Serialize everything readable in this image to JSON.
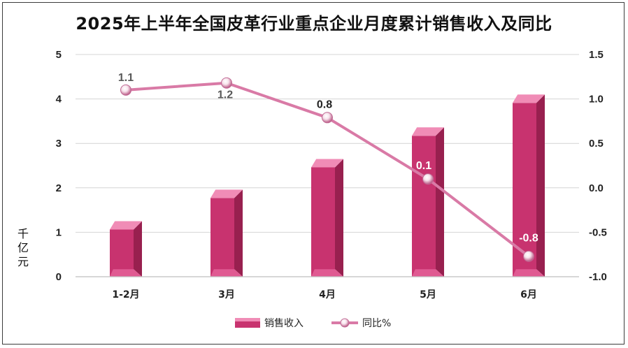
{
  "chart_data": {
    "type": "bar",
    "title": "2025年上半年全国皮革行业重点企业月度累计销售收入及同比",
    "categories": [
      "1-2月",
      "3月",
      "4月",
      "5月",
      "6月"
    ],
    "ylabel": "千亿元",
    "ylim": [
      0,
      5
    ],
    "yticks": [
      "0",
      "1",
      "2",
      "3",
      "4",
      "5"
    ],
    "y2lim": [
      -1.0,
      1.5
    ],
    "y2ticks": [
      "-1.0",
      "-0.5",
      "0.0",
      "0.5",
      "1.0",
      "1.5"
    ],
    "grid": true,
    "legend_position": "bottom",
    "series": [
      {
        "name": "销售收入",
        "type": "bar",
        "axis": "left",
        "values": [
          1.25,
          1.96,
          2.65,
          3.36,
          4.1
        ],
        "color": "#c8336f"
      },
      {
        "name": "同比%",
        "type": "line",
        "axis": "right",
        "values": [
          1.1,
          1.18,
          0.79,
          0.1,
          -0.77
        ],
        "labels": [
          "1.1",
          "1.2",
          "0.8",
          "0.1",
          "-0.8"
        ],
        "color": "#d97aa6"
      }
    ]
  }
}
